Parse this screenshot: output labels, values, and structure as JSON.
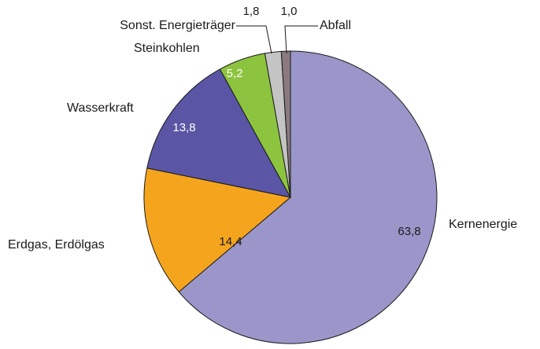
{
  "chart_data": {
    "type": "pie",
    "categories": [
      "Kernenergie",
      "Erdgas, Erdölgas",
      "Wasserkraft",
      "Steinkohlen",
      "Sonst. Energieträger",
      "Abfall"
    ],
    "values": [
      63.8,
      14.4,
      13.8,
      5.2,
      1.8,
      1.0
    ],
    "value_labels": [
      "63,8",
      "14,4",
      "13,8",
      "5,2",
      "1,8",
      "1,0"
    ],
    "colors": [
      "#9b96c9",
      "#f5a51d",
      "#5b55a5",
      "#8dc43f",
      "#c4c4c4",
      "#8a7a80"
    ]
  }
}
